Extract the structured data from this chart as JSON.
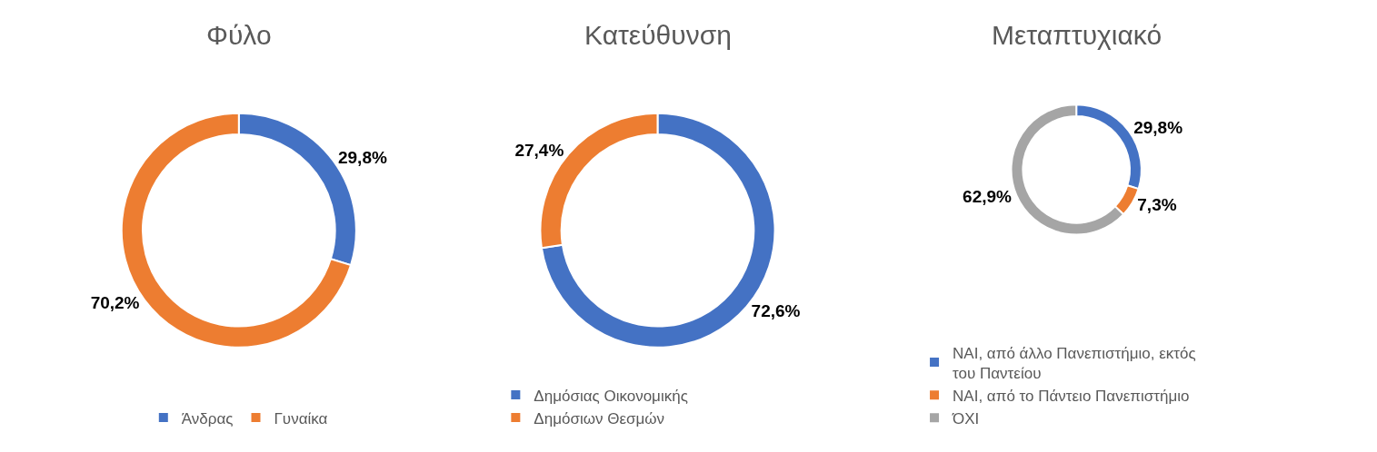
{
  "chart_data": [
    {
      "type": "donut",
      "title": "Φύλο",
      "categories": [
        "Άνδρας",
        "Γυναίκα"
      ],
      "values": [
        29.8,
        70.2
      ],
      "colors": [
        "#4472c4",
        "#ed7d31"
      ],
      "value_labels": [
        "29,8%",
        "70,2%"
      ],
      "legend": "bottom"
    },
    {
      "type": "donut",
      "title": "Κατεύθυνση",
      "categories": [
        "Δημόσιας Οικονομικής",
        "Δημόσιων Θεσμών"
      ],
      "values": [
        72.6,
        27.4
      ],
      "colors": [
        "#4472c4",
        "#ed7d31"
      ],
      "value_labels": [
        "72,6%",
        "27,4%"
      ],
      "legend": "bottom"
    },
    {
      "type": "donut",
      "title": "Μεταπτυχιακό",
      "categories": [
        "ΝΑΙ, από άλλο Πανεπιστήμιο, εκτός του Παντείου",
        "ΝΑΙ, από το Πάντειο Πανεπιστήμιο",
        "ΌΧΙ"
      ],
      "values": [
        29.8,
        7.3,
        62.9
      ],
      "colors": [
        "#4472c4",
        "#ed7d31",
        "#a5a5a5"
      ],
      "value_labels": [
        "29,8%",
        "7,3%",
        "62,9%"
      ],
      "legend": "bottom"
    }
  ]
}
